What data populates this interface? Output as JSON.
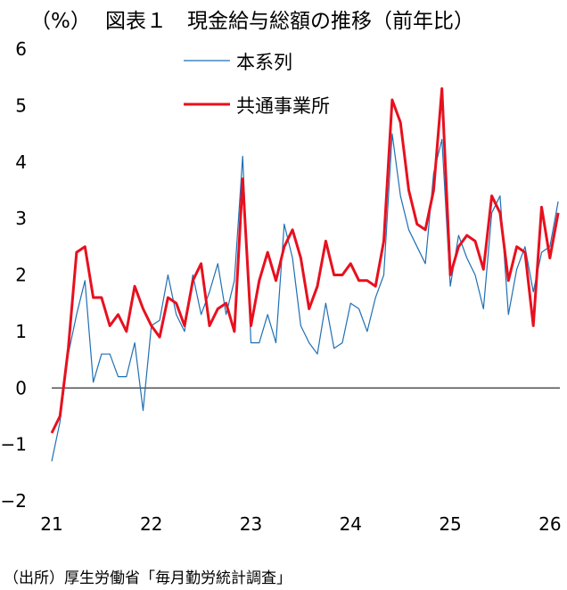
{
  "header": {
    "unit": "（%）",
    "title": "図表１　現金給与総額の推移（前年比）"
  },
  "source": "（出所）厚生労働省「毎月勤労統計調査」",
  "chart_data": {
    "type": "line",
    "title": "図表１　現金給与総額の推移（前年比）",
    "ylabel": "（%）",
    "xlabel": "",
    "ylim": [
      -2,
      6
    ],
    "yticks": [
      -2,
      -1,
      0,
      1,
      2,
      3,
      4,
      5,
      6
    ],
    "x_range": [
      2021.0,
      2026.1
    ],
    "xticks": [
      {
        "value": 2021.0,
        "label": "21"
      },
      {
        "value": 2022.0,
        "label": "22"
      },
      {
        "value": 2023.0,
        "label": "23"
      },
      {
        "value": 2024.0,
        "label": "24"
      },
      {
        "value": 2025.0,
        "label": "25"
      },
      {
        "value": 2026.0,
        "label": "26"
      }
    ],
    "grid": false,
    "legend_position": "top-center",
    "series": [
      {
        "name": "本系列",
        "color": "#1f6fb4",
        "stroke_width": 1.2,
        "values": [
          -1.3,
          -0.6,
          0.6,
          1.3,
          1.9,
          0.1,
          0.6,
          0.6,
          0.2,
          0.2,
          0.8,
          -0.4,
          1.1,
          1.2,
          2.0,
          1.3,
          1.0,
          2.0,
          1.3,
          1.7,
          2.2,
          1.3,
          1.9,
          4.1,
          0.8,
          0.8,
          1.3,
          0.8,
          2.9,
          2.3,
          1.1,
          0.8,
          0.6,
          1.5,
          0.7,
          0.8,
          1.5,
          1.4,
          1.0,
          1.6,
          2.0,
          4.5,
          3.4,
          2.8,
          2.5,
          2.2,
          3.8,
          4.4,
          1.8,
          2.7,
          2.3,
          2.0,
          1.4,
          3.1,
          3.4,
          1.3,
          2.1,
          2.5,
          1.7,
          2.4,
          2.5,
          3.3
        ]
      },
      {
        "name": "共通事業所",
        "color": "#e8101e",
        "stroke_width": 3,
        "values": [
          -0.8,
          -0.5,
          0.7,
          2.4,
          2.5,
          1.6,
          1.6,
          1.1,
          1.3,
          1.0,
          1.8,
          1.4,
          1.1,
          0.9,
          1.6,
          1.5,
          1.1,
          1.9,
          2.2,
          1.1,
          1.4,
          1.5,
          1.0,
          3.7,
          1.1,
          1.9,
          2.4,
          1.9,
          2.5,
          2.8,
          2.3,
          1.4,
          1.8,
          2.6,
          2.0,
          2.0,
          2.2,
          1.9,
          1.9,
          1.8,
          2.6,
          5.1,
          4.7,
          3.5,
          2.9,
          2.8,
          3.5,
          5.3,
          2.0,
          2.5,
          2.7,
          2.6,
          2.1,
          3.4,
          3.1,
          1.9,
          2.5,
          2.4,
          1.1,
          3.2,
          2.3,
          3.1
        ]
      }
    ],
    "x_start": {
      "year": 21,
      "month": 1
    }
  }
}
